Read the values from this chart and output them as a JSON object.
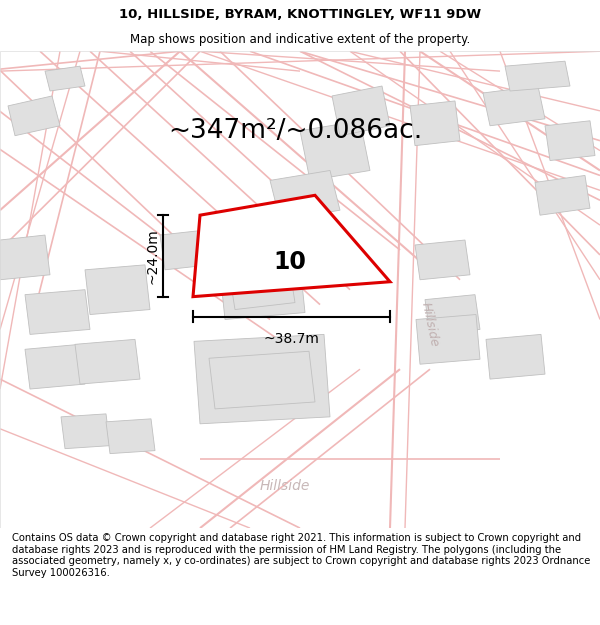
{
  "title_line1": "10, HILLSIDE, BYRAM, KNOTTINGLEY, WF11 9DW",
  "title_line2": "Map shows position and indicative extent of the property.",
  "area_text": "~347m²/~0.086ac.",
  "label_number": "10",
  "dim_height": "~24.0m",
  "dim_width": "~38.7m",
  "street_label_bottom": "Hillside",
  "street_label_right": "Hillside",
  "footer_text": "Contains OS data © Crown copyright and database right 2021. This information is subject to Crown copyright and database rights 2023 and is reproduced with the permission of HM Land Registry. The polygons (including the associated geometry, namely x, y co-ordinates) are subject to Crown copyright and database rights 2023 Ordnance Survey 100026316.",
  "bg_color": "#ffffff",
  "map_bg": "#ffffff",
  "road_color": "#f0b8b8",
  "building_color": "#e0e0e0",
  "building_edge": "#c0c0c0",
  "plot_color": "#ffffff",
  "plot_edge": "#dd0000",
  "title_fontsize": 9.5,
  "subtitle_fontsize": 8.5,
  "area_fontsize": 19,
  "label_fontsize": 17,
  "dim_fontsize": 10,
  "street_fontsize": 9,
  "footer_fontsize": 7.2
}
